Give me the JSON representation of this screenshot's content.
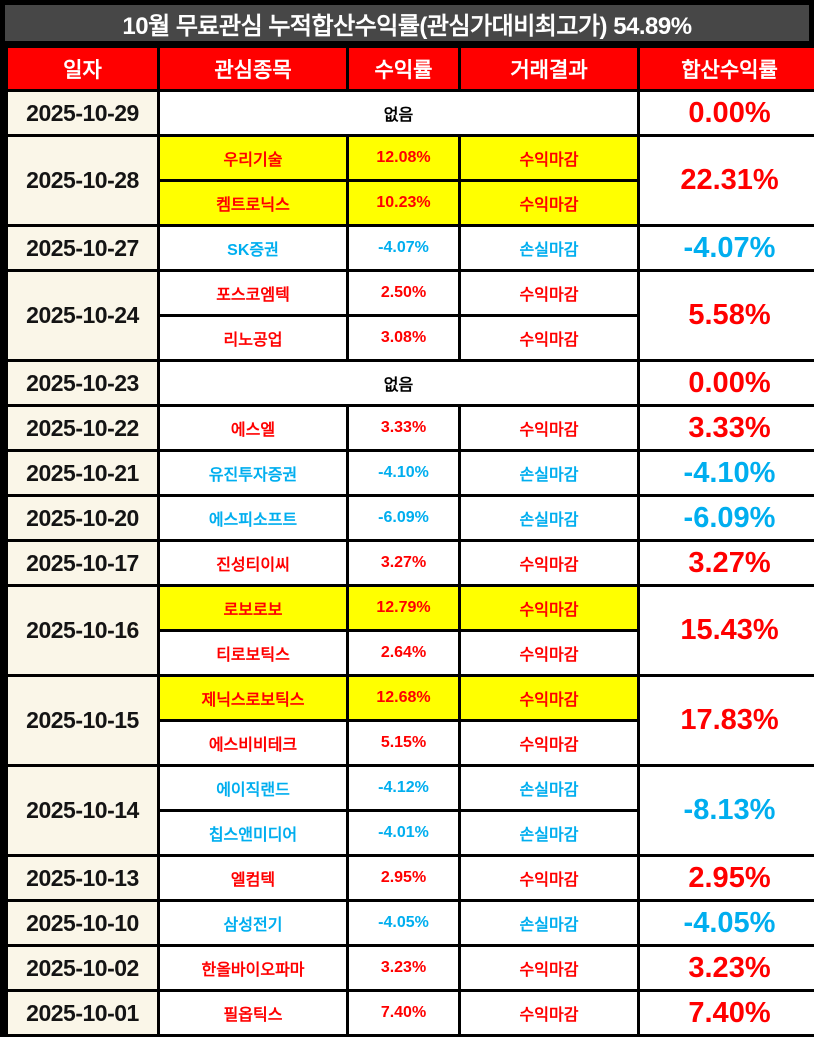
{
  "colors": {
    "title_bg": "#474747",
    "header_bg": "#FF0000",
    "header_fg": "#FFFFFF",
    "date_bg": "#FAF6E8",
    "profit": "#FF0000",
    "loss": "#00AEEF",
    "highlight": "#FFFF00",
    "grid": "#000000"
  },
  "chart_data": {
    "type": "table",
    "title": "10월 무료관심 누적합산수익률(관심가대비최고가) 54.89%",
    "columns": [
      "일자",
      "관심종목",
      "수익률",
      "거래결과",
      "합산수익률"
    ],
    "none_label": "없음",
    "groups": [
      {
        "date": "2025-10-29",
        "entries": [],
        "total": "0.00%",
        "tone": "up"
      },
      {
        "date": "2025-10-28",
        "entries": [
          {
            "stock": "우리기술",
            "return": "12.08%",
            "result": "수익마감",
            "tone": "up",
            "highlight": true
          },
          {
            "stock": "켐트로닉스",
            "return": "10.23%",
            "result": "수익마감",
            "tone": "up",
            "highlight": true
          }
        ],
        "total": "22.31%",
        "tone": "up"
      },
      {
        "date": "2025-10-27",
        "entries": [
          {
            "stock": "SK증권",
            "return": "-4.07%",
            "result": "손실마감",
            "tone": "down",
            "highlight": false
          }
        ],
        "total": "-4.07%",
        "tone": "down"
      },
      {
        "date": "2025-10-24",
        "entries": [
          {
            "stock": "포스코엠텍",
            "return": "2.50%",
            "result": "수익마감",
            "tone": "up",
            "highlight": false
          },
          {
            "stock": "리노공업",
            "return": "3.08%",
            "result": "수익마감",
            "tone": "up",
            "highlight": false
          }
        ],
        "total": "5.58%",
        "tone": "up"
      },
      {
        "date": "2025-10-23",
        "entries": [],
        "total": "0.00%",
        "tone": "up"
      },
      {
        "date": "2025-10-22",
        "entries": [
          {
            "stock": "에스엘",
            "return": "3.33%",
            "result": "수익마감",
            "tone": "up",
            "highlight": false
          }
        ],
        "total": "3.33%",
        "tone": "up"
      },
      {
        "date": "2025-10-21",
        "entries": [
          {
            "stock": "유진투자증권",
            "return": "-4.10%",
            "result": "손실마감",
            "tone": "down",
            "highlight": false
          }
        ],
        "total": "-4.10%",
        "tone": "down"
      },
      {
        "date": "2025-10-20",
        "entries": [
          {
            "stock": "에스피소프트",
            "return": "-6.09%",
            "result": "손실마감",
            "tone": "down",
            "highlight": false
          }
        ],
        "total": "-6.09%",
        "tone": "down"
      },
      {
        "date": "2025-10-17",
        "entries": [
          {
            "stock": "진성티이씨",
            "return": "3.27%",
            "result": "수익마감",
            "tone": "up",
            "highlight": false
          }
        ],
        "total": "3.27%",
        "tone": "up"
      },
      {
        "date": "2025-10-16",
        "entries": [
          {
            "stock": "로보로보",
            "return": "12.79%",
            "result": "수익마감",
            "tone": "up",
            "highlight": true
          },
          {
            "stock": "티로보틱스",
            "return": "2.64%",
            "result": "수익마감",
            "tone": "up",
            "highlight": false
          }
        ],
        "total": "15.43%",
        "tone": "up"
      },
      {
        "date": "2025-10-15",
        "entries": [
          {
            "stock": "제닉스로보틱스",
            "return": "12.68%",
            "result": "수익마감",
            "tone": "up",
            "highlight": true
          },
          {
            "stock": "에스비비테크",
            "return": "5.15%",
            "result": "수익마감",
            "tone": "up",
            "highlight": false
          }
        ],
        "total": "17.83%",
        "tone": "up"
      },
      {
        "date": "2025-10-14",
        "entries": [
          {
            "stock": "에이직랜드",
            "return": "-4.12%",
            "result": "손실마감",
            "tone": "down",
            "highlight": false
          },
          {
            "stock": "칩스앤미디어",
            "return": "-4.01%",
            "result": "손실마감",
            "tone": "down",
            "highlight": false
          }
        ],
        "total": "-8.13%",
        "tone": "down"
      },
      {
        "date": "2025-10-13",
        "entries": [
          {
            "stock": "엘컴텍",
            "return": "2.95%",
            "result": "수익마감",
            "tone": "up",
            "highlight": false
          }
        ],
        "total": "2.95%",
        "tone": "up"
      },
      {
        "date": "2025-10-10",
        "entries": [
          {
            "stock": "삼성전기",
            "return": "-4.05%",
            "result": "손실마감",
            "tone": "down",
            "highlight": false
          }
        ],
        "total": "-4.05%",
        "tone": "down"
      },
      {
        "date": "2025-10-02",
        "entries": [
          {
            "stock": "한올바이오파마",
            "return": "3.23%",
            "result": "수익마감",
            "tone": "up",
            "highlight": false
          }
        ],
        "total": "3.23%",
        "tone": "up"
      },
      {
        "date": "2025-10-01",
        "entries": [
          {
            "stock": "필옵틱스",
            "return": "7.40%",
            "result": "수익마감",
            "tone": "up",
            "highlight": false
          }
        ],
        "total": "7.40%",
        "tone": "up"
      }
    ]
  }
}
